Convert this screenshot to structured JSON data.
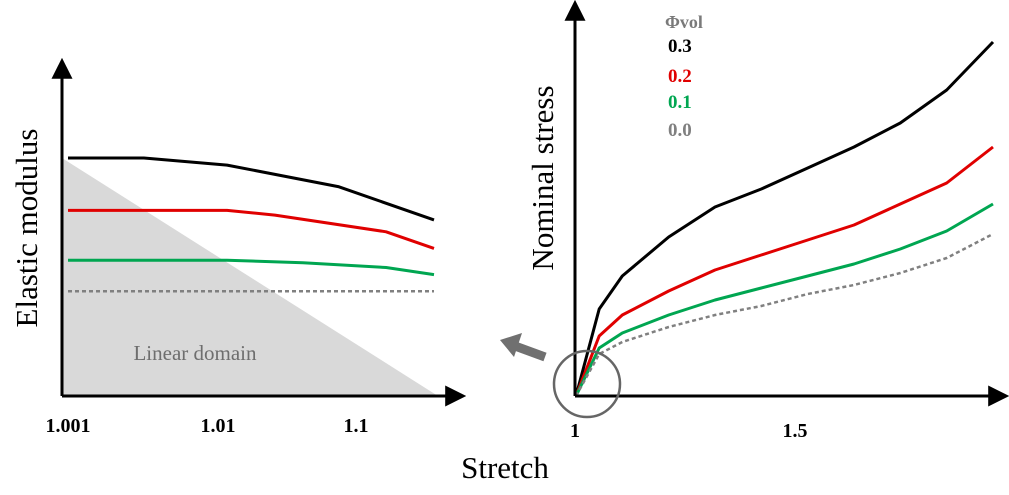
{
  "xlabel_shared": "Stretch",
  "chart_data": [
    {
      "type": "line",
      "xlabel": "",
      "ylabel": "Elastic modulus",
      "x_scale": "log",
      "x_ticks": [
        "1.001",
        "1.01",
        "1.1"
      ],
      "annotation": "Linear domain",
      "shaded_region": "linear domain (triangle below diagonal)",
      "series": [
        {
          "name": "0.3",
          "color": "#000000",
          "style": "solid",
          "points": [
            [
              1.001,
              1.0
            ],
            [
              1.003,
              1.0
            ],
            [
              1.01,
              0.97
            ],
            [
              1.05,
              0.88
            ],
            [
              1.2,
              0.74
            ]
          ]
        },
        {
          "name": "0.2",
          "color": "#e00000",
          "style": "solid",
          "points": [
            [
              1.001,
              0.78
            ],
            [
              1.01,
              0.78
            ],
            [
              1.02,
              0.76
            ],
            [
              1.1,
              0.69
            ],
            [
              1.2,
              0.62
            ]
          ]
        },
        {
          "name": "0.1",
          "color": "#00a651",
          "style": "solid",
          "points": [
            [
              1.001,
              0.57
            ],
            [
              1.01,
              0.57
            ],
            [
              1.03,
              0.56
            ],
            [
              1.1,
              0.54
            ],
            [
              1.2,
              0.51
            ]
          ]
        },
        {
          "name": "0.0",
          "color": "#808080",
          "style": "dotted",
          "points": [
            [
              1.001,
              0.44
            ],
            [
              1.2,
              0.44
            ]
          ]
        }
      ]
    },
    {
      "type": "line",
      "xlabel": "",
      "ylabel": "Nominal stress",
      "x_ticks": [
        "1",
        "1.5"
      ],
      "xlim": [
        1,
        1.9
      ],
      "legend_title": "Φvol",
      "legend_position": "top-left",
      "series": [
        {
          "name": "0.3",
          "color": "#000000",
          "style": "solid",
          "points": [
            [
              1.0,
              0.0
            ],
            [
              1.05,
              0.29
            ],
            [
              1.1,
              0.4
            ],
            [
              1.2,
              0.53
            ],
            [
              1.3,
              0.63
            ],
            [
              1.4,
              0.69
            ],
            [
              1.5,
              0.76
            ],
            [
              1.6,
              0.83
            ],
            [
              1.7,
              0.91
            ],
            [
              1.8,
              1.02
            ],
            [
              1.9,
              1.18
            ]
          ]
        },
        {
          "name": "0.2",
          "color": "#e00000",
          "style": "solid",
          "points": [
            [
              1.0,
              0.0
            ],
            [
              1.05,
              0.2
            ],
            [
              1.1,
              0.27
            ],
            [
              1.2,
              0.35
            ],
            [
              1.3,
              0.42
            ],
            [
              1.4,
              0.47
            ],
            [
              1.5,
              0.52
            ],
            [
              1.6,
              0.57
            ],
            [
              1.7,
              0.64
            ],
            [
              1.8,
              0.71
            ],
            [
              1.9,
              0.83
            ]
          ]
        },
        {
          "name": "0.1",
          "color": "#00a651",
          "style": "solid",
          "points": [
            [
              1.0,
              0.0
            ],
            [
              1.05,
              0.16
            ],
            [
              1.1,
              0.21
            ],
            [
              1.2,
              0.27
            ],
            [
              1.3,
              0.32
            ],
            [
              1.4,
              0.36
            ],
            [
              1.5,
              0.4
            ],
            [
              1.6,
              0.44
            ],
            [
              1.7,
              0.49
            ],
            [
              1.8,
              0.55
            ],
            [
              1.9,
              0.64
            ]
          ]
        },
        {
          "name": "0.0",
          "color": "#808080",
          "style": "dotted",
          "points": [
            [
              1.0,
              0.0
            ],
            [
              1.05,
              0.14
            ],
            [
              1.1,
              0.18
            ],
            [
              1.2,
              0.23
            ],
            [
              1.3,
              0.27
            ],
            [
              1.4,
              0.3
            ],
            [
              1.5,
              0.34
            ],
            [
              1.6,
              0.37
            ],
            [
              1.7,
              0.41
            ],
            [
              1.8,
              0.46
            ],
            [
              1.9,
              0.54
            ]
          ]
        }
      ]
    }
  ]
}
